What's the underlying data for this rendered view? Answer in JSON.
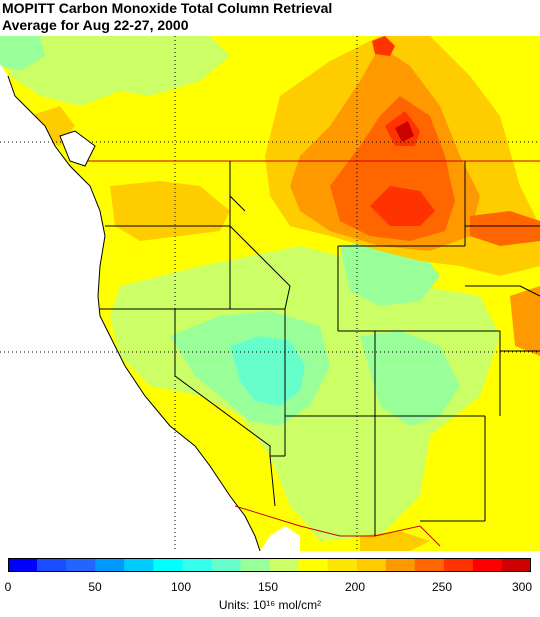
{
  "header": {
    "title_line1": "MOPITT Carbon Monoxide Total Column Retrieval",
    "title_line2": "Average for Aug 22-27, 2000"
  },
  "colorbar": {
    "colors": [
      "#0000ff",
      "#1a4dff",
      "#2266ff",
      "#0099ff",
      "#00ccff",
      "#00ffff",
      "#33ffee",
      "#66ffcc",
      "#99ff99",
      "#ccff66",
      "#ffff00",
      "#ffe600",
      "#ffcc00",
      "#ff9900",
      "#ff6600",
      "#ff3300",
      "#ff0000",
      "#cc0000"
    ],
    "ticks": [
      "0",
      "50",
      "100",
      "150",
      "200",
      "250",
      "300"
    ],
    "units_label": "Units: 10¹⁶ mol/cm²"
  },
  "map": {
    "region": "Western United States",
    "palette": {
      "water": "#ffffff",
      "low": "#66ffcc",
      "mid_low": "#99ff99",
      "mid": "#ccff66",
      "yellow": "#ffff00",
      "high": "#ffcc00",
      "higher": "#ff9900",
      "very_high": "#ff6600",
      "max": "#cc0000"
    }
  }
}
